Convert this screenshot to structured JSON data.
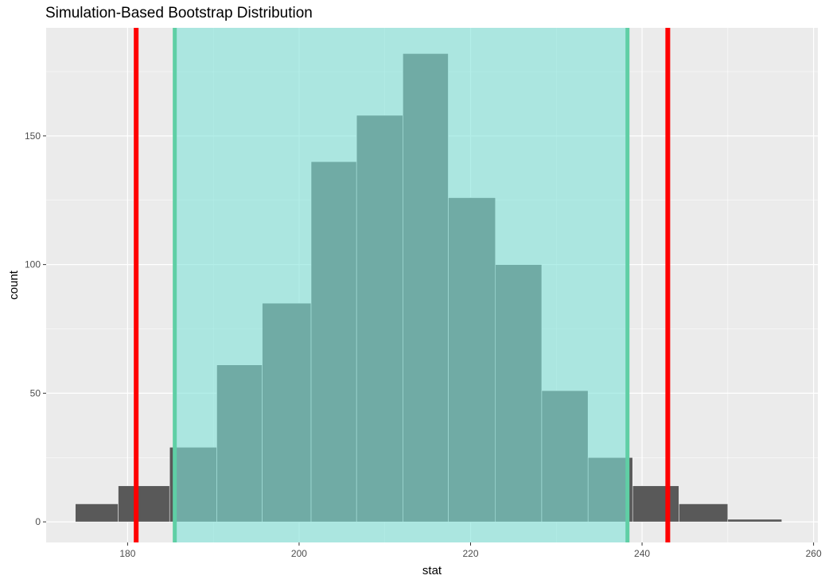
{
  "chart_data": {
    "type": "bar",
    "title": "Simulation-Based Bootstrap Distribution",
    "xlabel": "stat",
    "ylabel": "count",
    "xlim": [
      170.5,
      260.5
    ],
    "ylim": [
      -8,
      192
    ],
    "x_ticks": [
      180,
      200,
      220,
      240,
      260
    ],
    "y_ticks": [
      0,
      50,
      100,
      150
    ],
    "grid": true,
    "bin_edges": [
      173.9,
      178.9,
      184.9,
      190.4,
      195.7,
      201.4,
      206.7,
      212.1,
      217.4,
      222.9,
      228.3,
      233.7,
      238.9,
      244.3,
      250.0,
      256.3
    ],
    "series": [
      {
        "values": [
          7,
          14,
          29,
          61,
          85,
          140,
          158,
          182,
          126,
          100,
          51,
          25,
          14,
          7,
          1
        ]
      }
    ],
    "shaded_interval": [
      185.5,
      238.3
    ],
    "reference_lines": [
      181,
      243
    ],
    "colors": {
      "bar_outside": "#595959",
      "bar_inside": "#4aaba0",
      "shade": "#80e3d9",
      "shade_edge": "#5fcfa5",
      "reference_line": "#ff0000",
      "panel": "#ebebeb",
      "grid": "#ffffff"
    }
  }
}
